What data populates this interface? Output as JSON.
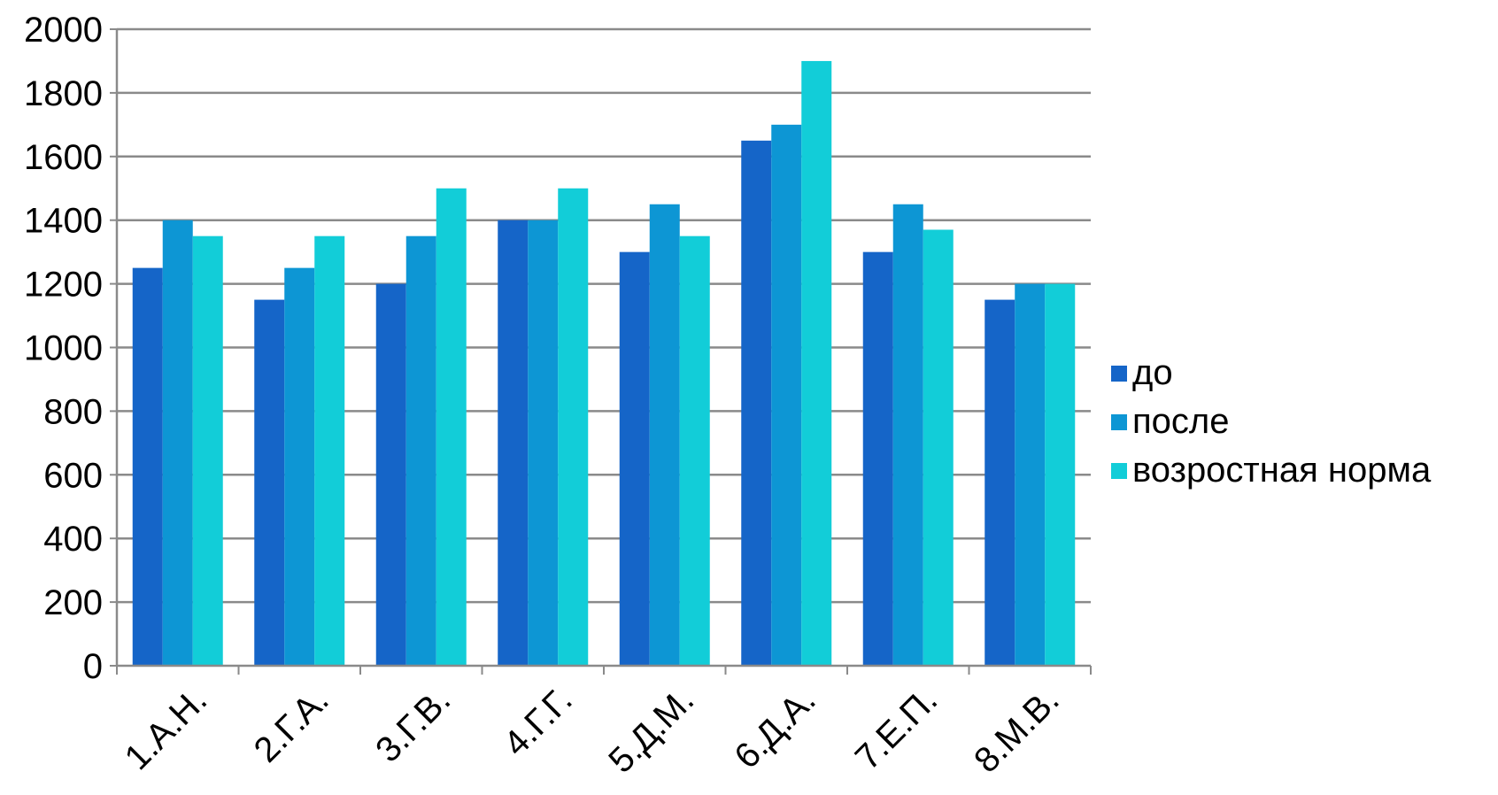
{
  "chart_data": {
    "type": "bar",
    "categories": [
      "1.А.Н.",
      "2.Г.А.",
      "3.Г.В.",
      "4.Г.Г.",
      "5.Д.М.",
      "6.Д.А.",
      "7.Е.П.",
      "8.М.В."
    ],
    "series": [
      {
        "name": "до",
        "color": "#1565c8",
        "values": [
          1250,
          1150,
          1200,
          1400,
          1300,
          1650,
          1300,
          1150
        ]
      },
      {
        "name": "после",
        "color": "#0d96d4",
        "values": [
          1400,
          1250,
          1350,
          1400,
          1450,
          1700,
          1450,
          1200
        ]
      },
      {
        "name": "возростная норма",
        "color": "#12cdd8",
        "values": [
          1350,
          1350,
          1500,
          1500,
          1350,
          1900,
          1370,
          1200
        ]
      }
    ],
    "yticks": [
      "0",
      "200",
      "400",
      "600",
      "800",
      "1000",
      "1200",
      "1400",
      "1600",
      "1800",
      "2000"
    ],
    "ylim": [
      0,
      2000
    ],
    "grid": true,
    "legend_position": "right"
  }
}
